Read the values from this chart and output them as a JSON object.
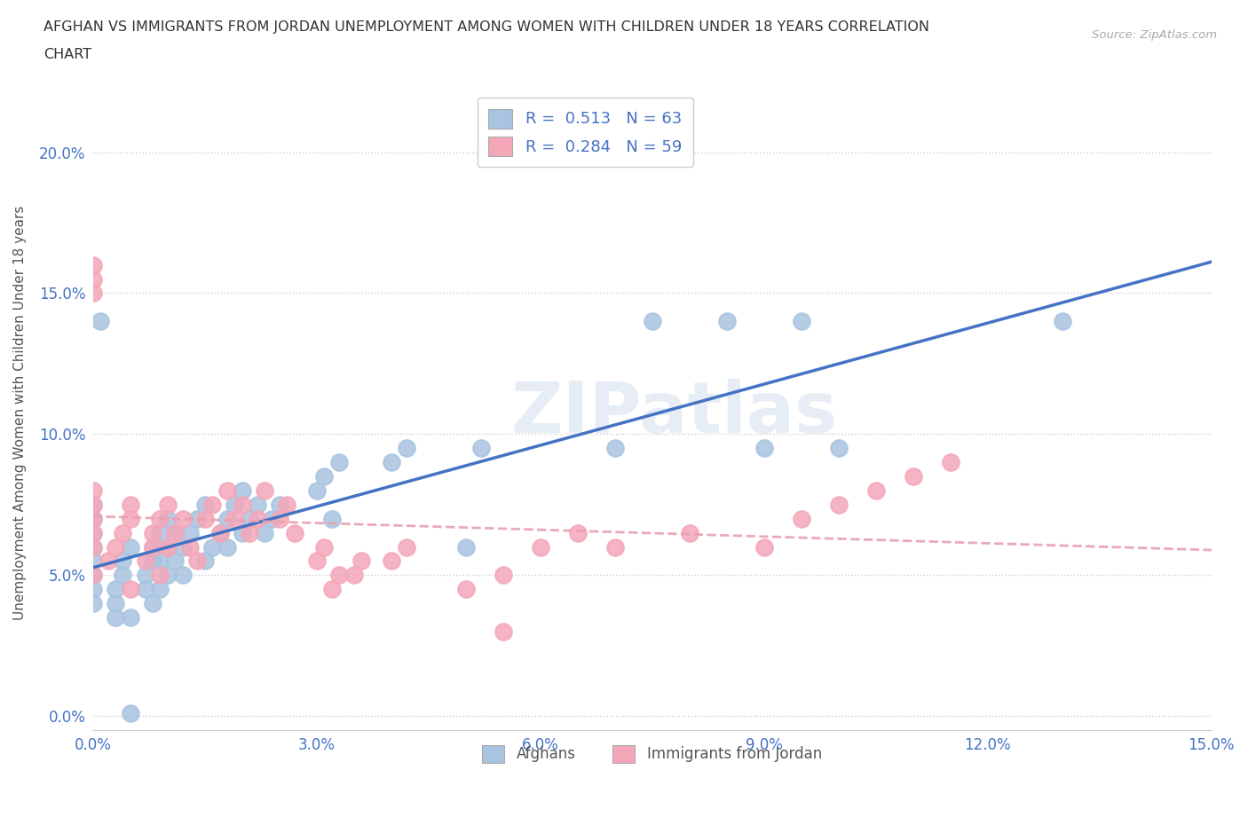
{
  "title_line1": "AFGHAN VS IMMIGRANTS FROM JORDAN UNEMPLOYMENT AMONG WOMEN WITH CHILDREN UNDER 18 YEARS CORRELATION",
  "title_line2": "CHART",
  "source_text": "Source: ZipAtlas.com",
  "ylabel": "Unemployment Among Women with Children Under 18 years",
  "xlim": [
    0.0,
    0.15
  ],
  "ylim": [
    -0.005,
    0.22
  ],
  "xticks": [
    0.0,
    0.03,
    0.06,
    0.09,
    0.12,
    0.15
  ],
  "yticks": [
    0.0,
    0.05,
    0.1,
    0.15,
    0.2
  ],
  "xtick_labels": [
    "0.0%",
    "3.0%",
    "6.0%",
    "9.0%",
    "12.0%",
    "15.0%"
  ],
  "ytick_labels": [
    "0.0%",
    "5.0%",
    "10.0%",
    "15.0%",
    "20.0%"
  ],
  "blue_color": "#a8c4e0",
  "pink_color": "#f4a7b9",
  "trendline_blue_color": "#4472c4",
  "trendline_pink_color": "#e8a0b0",
  "legend_label1": "Afghans",
  "legend_label2": "Immigrants from Jordan",
  "R_blue": 0.513,
  "N_blue": 63,
  "R_pink": 0.284,
  "N_pink": 59,
  "watermark": "ZIPatlas",
  "blue_scatter_x": [
    0.0,
    0.0,
    0.0,
    0.0,
    0.0,
    0.0,
    0.0,
    0.0,
    0.003,
    0.003,
    0.003,
    0.004,
    0.004,
    0.005,
    0.005,
    0.007,
    0.007,
    0.008,
    0.008,
    0.008,
    0.009,
    0.009,
    0.009,
    0.01,
    0.01,
    0.01,
    0.011,
    0.011,
    0.012,
    0.012,
    0.013,
    0.014,
    0.015,
    0.015,
    0.016,
    0.017,
    0.018,
    0.018,
    0.019,
    0.02,
    0.02,
    0.021,
    0.022,
    0.023,
    0.024,
    0.025,
    0.03,
    0.031,
    0.032,
    0.033,
    0.04,
    0.042,
    0.05,
    0.052,
    0.07,
    0.075,
    0.085,
    0.09,
    0.095,
    0.1,
    0.13,
    0.005,
    0.001
  ],
  "blue_scatter_y": [
    0.06,
    0.065,
    0.07,
    0.075,
    0.055,
    0.045,
    0.05,
    0.04,
    0.035,
    0.04,
    0.045,
    0.05,
    0.055,
    0.06,
    0.035,
    0.045,
    0.05,
    0.055,
    0.06,
    0.04,
    0.045,
    0.055,
    0.065,
    0.05,
    0.06,
    0.07,
    0.055,
    0.065,
    0.05,
    0.06,
    0.065,
    0.07,
    0.055,
    0.075,
    0.06,
    0.065,
    0.07,
    0.06,
    0.075,
    0.065,
    0.08,
    0.07,
    0.075,
    0.065,
    0.07,
    0.075,
    0.08,
    0.085,
    0.07,
    0.09,
    0.09,
    0.095,
    0.06,
    0.095,
    0.095,
    0.14,
    0.14,
    0.095,
    0.14,
    0.095,
    0.14,
    0.001,
    0.14
  ],
  "pink_scatter_x": [
    0.0,
    0.0,
    0.0,
    0.0,
    0.0,
    0.0,
    0.0,
    0.0,
    0.0,
    0.002,
    0.003,
    0.004,
    0.005,
    0.005,
    0.005,
    0.007,
    0.008,
    0.008,
    0.009,
    0.009,
    0.01,
    0.01,
    0.011,
    0.012,
    0.013,
    0.014,
    0.015,
    0.016,
    0.017,
    0.018,
    0.019,
    0.02,
    0.021,
    0.022,
    0.023,
    0.025,
    0.026,
    0.027,
    0.03,
    0.031,
    0.032,
    0.033,
    0.035,
    0.036,
    0.04,
    0.042,
    0.05,
    0.055,
    0.06,
    0.065,
    0.07,
    0.08,
    0.09,
    0.095,
    0.1,
    0.105,
    0.11,
    0.115,
    0.055
  ],
  "pink_scatter_y": [
    0.06,
    0.065,
    0.07,
    0.075,
    0.08,
    0.05,
    0.16,
    0.155,
    0.15,
    0.055,
    0.06,
    0.065,
    0.07,
    0.075,
    0.045,
    0.055,
    0.06,
    0.065,
    0.07,
    0.05,
    0.06,
    0.075,
    0.065,
    0.07,
    0.06,
    0.055,
    0.07,
    0.075,
    0.065,
    0.08,
    0.07,
    0.075,
    0.065,
    0.07,
    0.08,
    0.07,
    0.075,
    0.065,
    0.055,
    0.06,
    0.045,
    0.05,
    0.05,
    0.055,
    0.055,
    0.06,
    0.045,
    0.05,
    0.06,
    0.065,
    0.06,
    0.065,
    0.06,
    0.07,
    0.075,
    0.08,
    0.085,
    0.09,
    0.03
  ]
}
